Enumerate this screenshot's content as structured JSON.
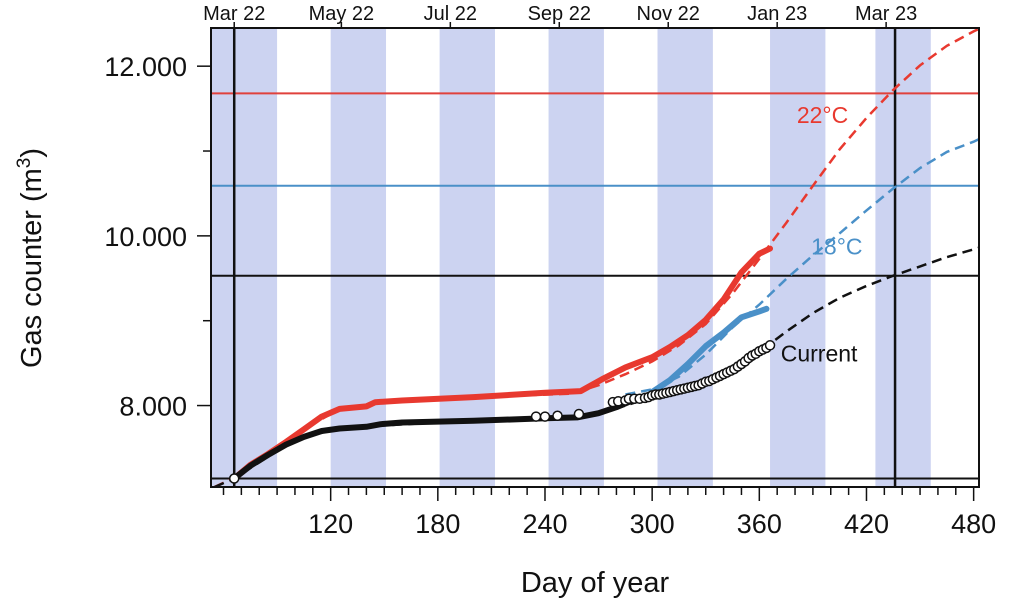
{
  "chart_data": {
    "type": "line",
    "xlabel": "Day of year",
    "ylabel_main": "Gas counter (m",
    "ylabel_sup": "3",
    "ylabel_close": ")",
    "xlim": [
      53,
      483
    ],
    "ylim": [
      7040,
      12450
    ],
    "x_ticks": [
      {
        "value": 120,
        "label": "120"
      },
      {
        "value": 180,
        "label": "180"
      },
      {
        "value": 240,
        "label": "240"
      },
      {
        "value": 300,
        "label": "300"
      },
      {
        "value": 360,
        "label": "360"
      },
      {
        "value": 420,
        "label": "420"
      },
      {
        "value": 480,
        "label": "480"
      }
    ],
    "x_minor_step": 10,
    "y_ticks": [
      {
        "value": 8000,
        "label": "8.000"
      },
      {
        "value": 10000,
        "label": "10.000"
      },
      {
        "value": 12000,
        "label": "12.000"
      }
    ],
    "y_minor_step": 1000,
    "top_axis_labels": [
      {
        "value": 66,
        "label": "Mar 22"
      },
      {
        "value": 126,
        "label": "May 22"
      },
      {
        "value": 187,
        "label": "Jul 22"
      },
      {
        "value": 248,
        "label": "Sep 22"
      },
      {
        "value": 309,
        "label": "Nov 22"
      },
      {
        "value": 370,
        "label": "Jan 23"
      },
      {
        "value": 431,
        "label": "Mar 23"
      }
    ],
    "shaded_months": [
      [
        53,
        90
      ],
      [
        120,
        151
      ],
      [
        181,
        212
      ],
      [
        242,
        273
      ],
      [
        303,
        334
      ],
      [
        366,
        397
      ],
      [
        425,
        456
      ]
    ],
    "shade_color": "#ccd3f1",
    "vertical_lines": [
      66,
      436
    ],
    "horizontal_lines": [
      {
        "value": 11680,
        "color": "#e0413c"
      },
      {
        "value": 10590,
        "color": "#4a90c8"
      },
      {
        "value": 9530,
        "color": "#111111"
      },
      {
        "value": 7140,
        "color": "#111111"
      }
    ],
    "series": [
      {
        "name": "22°C",
        "color": "#e8392f",
        "label_x": 381,
        "label_y": 11330,
        "observed": [
          [
            66,
            7140
          ],
          [
            75,
            7300
          ],
          [
            85,
            7430
          ],
          [
            95,
            7570
          ],
          [
            105,
            7720
          ],
          [
            115,
            7870
          ],
          [
            125,
            7960
          ],
          [
            140,
            7990
          ],
          [
            145,
            8040
          ],
          [
            160,
            8060
          ],
          [
            200,
            8100
          ],
          [
            240,
            8150
          ],
          [
            260,
            8170
          ],
          [
            272,
            8310
          ],
          [
            285,
            8450
          ],
          [
            300,
            8570
          ],
          [
            310,
            8690
          ],
          [
            320,
            8830
          ],
          [
            330,
            9010
          ],
          [
            340,
            9250
          ],
          [
            350,
            9570
          ],
          [
            360,
            9790
          ],
          [
            366,
            9850
          ]
        ],
        "model": [
          [
            55,
            7040
          ],
          [
            66,
            7150
          ],
          [
            80,
            7340
          ],
          [
            95,
            7560
          ],
          [
            110,
            7780
          ],
          [
            125,
            7960
          ],
          [
            140,
            8000
          ],
          [
            145,
            8040
          ],
          [
            200,
            8100
          ],
          [
            255,
            8140
          ],
          [
            270,
            8240
          ],
          [
            285,
            8370
          ],
          [
            300,
            8520
          ],
          [
            315,
            8710
          ],
          [
            330,
            8960
          ],
          [
            345,
            9320
          ],
          [
            360,
            9730
          ],
          [
            375,
            10150
          ],
          [
            390,
            10590
          ],
          [
            405,
            11020
          ],
          [
            420,
            11390
          ],
          [
            435,
            11720
          ],
          [
            450,
            12010
          ],
          [
            465,
            12240
          ],
          [
            480,
            12410
          ],
          [
            483,
            12440
          ]
        ]
      },
      {
        "name": "18°C",
        "color": "#4a90c8",
        "label_x": 389,
        "label_y": 9780,
        "observed": [
          [
            300,
            8160
          ],
          [
            310,
            8300
          ],
          [
            320,
            8490
          ],
          [
            330,
            8700
          ],
          [
            340,
            8860
          ],
          [
            350,
            9040
          ],
          [
            360,
            9110
          ],
          [
            364,
            9140
          ]
        ],
        "model": [
          [
            285,
            8130
          ],
          [
            300,
            8190
          ],
          [
            315,
            8340
          ],
          [
            330,
            8600
          ],
          [
            345,
            8920
          ],
          [
            360,
            9190
          ],
          [
            375,
            9490
          ],
          [
            390,
            9770
          ],
          [
            405,
            10030
          ],
          [
            420,
            10300
          ],
          [
            435,
            10560
          ],
          [
            450,
            10800
          ],
          [
            465,
            10990
          ],
          [
            480,
            11110
          ],
          [
            483,
            11140
          ]
        ]
      },
      {
        "name": "Current",
        "color": "#111111",
        "label_x": 372,
        "label_y": 8520,
        "observed": [
          [
            66,
            7140
          ],
          [
            75,
            7290
          ],
          [
            85,
            7420
          ],
          [
            95,
            7540
          ],
          [
            105,
            7630
          ],
          [
            115,
            7700
          ],
          [
            125,
            7730
          ],
          [
            140,
            7750
          ],
          [
            148,
            7780
          ],
          [
            160,
            7800
          ],
          [
            200,
            7820
          ],
          [
            240,
            7850
          ],
          [
            258,
            7860
          ],
          [
            270,
            7910
          ],
          [
            280,
            7980
          ],
          [
            290,
            8070
          ],
          [
            300,
            8120
          ],
          [
            310,
            8160
          ],
          [
            320,
            8200
          ],
          [
            330,
            8280
          ],
          [
            340,
            8360
          ],
          [
            350,
            8470
          ],
          [
            360,
            8620
          ],
          [
            366,
            8710
          ]
        ],
        "markers": [
          [
            66,
            7140
          ],
          [
            235,
            7870
          ],
          [
            240,
            7870
          ],
          [
            247,
            7880
          ],
          [
            259,
            7900
          ],
          [
            278,
            8040
          ],
          [
            281,
            8050
          ],
          [
            285,
            8060
          ],
          [
            287,
            8080
          ],
          [
            290,
            8080
          ],
          [
            293,
            8080
          ],
          [
            296,
            8090
          ],
          [
            298,
            8100
          ],
          [
            300,
            8120
          ],
          [
            302,
            8130
          ],
          [
            304,
            8130
          ],
          [
            306,
            8140
          ],
          [
            308,
            8150
          ],
          [
            310,
            8160
          ],
          [
            312,
            8170
          ],
          [
            314,
            8180
          ],
          [
            316,
            8190
          ],
          [
            318,
            8200
          ],
          [
            320,
            8210
          ],
          [
            322,
            8220
          ],
          [
            324,
            8230
          ],
          [
            326,
            8240
          ],
          [
            328,
            8260
          ],
          [
            330,
            8280
          ],
          [
            332,
            8290
          ],
          [
            334,
            8310
          ],
          [
            336,
            8330
          ],
          [
            338,
            8350
          ],
          [
            340,
            8370
          ],
          [
            342,
            8390
          ],
          [
            344,
            8410
          ],
          [
            346,
            8430
          ],
          [
            348,
            8460
          ],
          [
            350,
            8490
          ],
          [
            352,
            8520
          ],
          [
            354,
            8560
          ],
          [
            356,
            8590
          ],
          [
            358,
            8610
          ],
          [
            360,
            8640
          ],
          [
            362,
            8660
          ],
          [
            364,
            8680
          ],
          [
            366,
            8710
          ]
        ],
        "model": [
          [
            55,
            7040
          ],
          [
            66,
            7140
          ],
          [
            80,
            7330
          ],
          [
            95,
            7530
          ],
          [
            110,
            7660
          ],
          [
            125,
            7720
          ],
          [
            145,
            7760
          ],
          [
            180,
            7800
          ],
          [
            220,
            7830
          ],
          [
            258,
            7860
          ],
          [
            270,
            7900
          ],
          [
            285,
            8000
          ],
          [
            300,
            8100
          ],
          [
            315,
            8180
          ],
          [
            330,
            8290
          ],
          [
            345,
            8430
          ],
          [
            360,
            8630
          ],
          [
            375,
            8870
          ],
          [
            390,
            9090
          ],
          [
            405,
            9270
          ],
          [
            420,
            9410
          ],
          [
            435,
            9530
          ],
          [
            450,
            9640
          ],
          [
            465,
            9750
          ],
          [
            480,
            9840
          ],
          [
            483,
            9860
          ]
        ]
      }
    ]
  }
}
